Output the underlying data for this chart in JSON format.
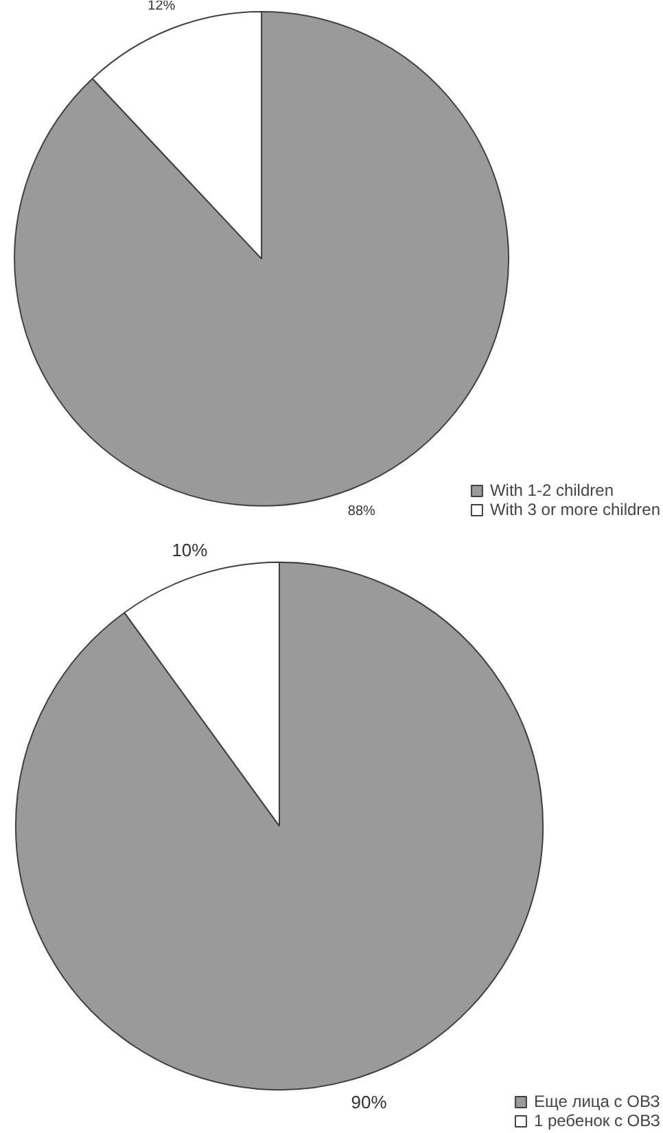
{
  "chart_data": [
    {
      "type": "pie",
      "categories": [
        "With 1-2 children",
        "With 3 or more children"
      ],
      "values": [
        88,
        12
      ],
      "colors": [
        "#9a9a9a",
        "#ffffff"
      ],
      "value_labels": [
        "88%",
        "12%"
      ],
      "legend": "bottom right"
    },
    {
      "type": "pie",
      "categories": [
        "Еще лица с ОВЗ",
        "1 ребенок с ОВЗ"
      ],
      "values": [
        90,
        10
      ],
      "colors": [
        "#9a9a9a",
        "#ffffff"
      ],
      "value_labels": [
        "90%",
        "10%"
      ],
      "legend": "bottom right"
    }
  ]
}
